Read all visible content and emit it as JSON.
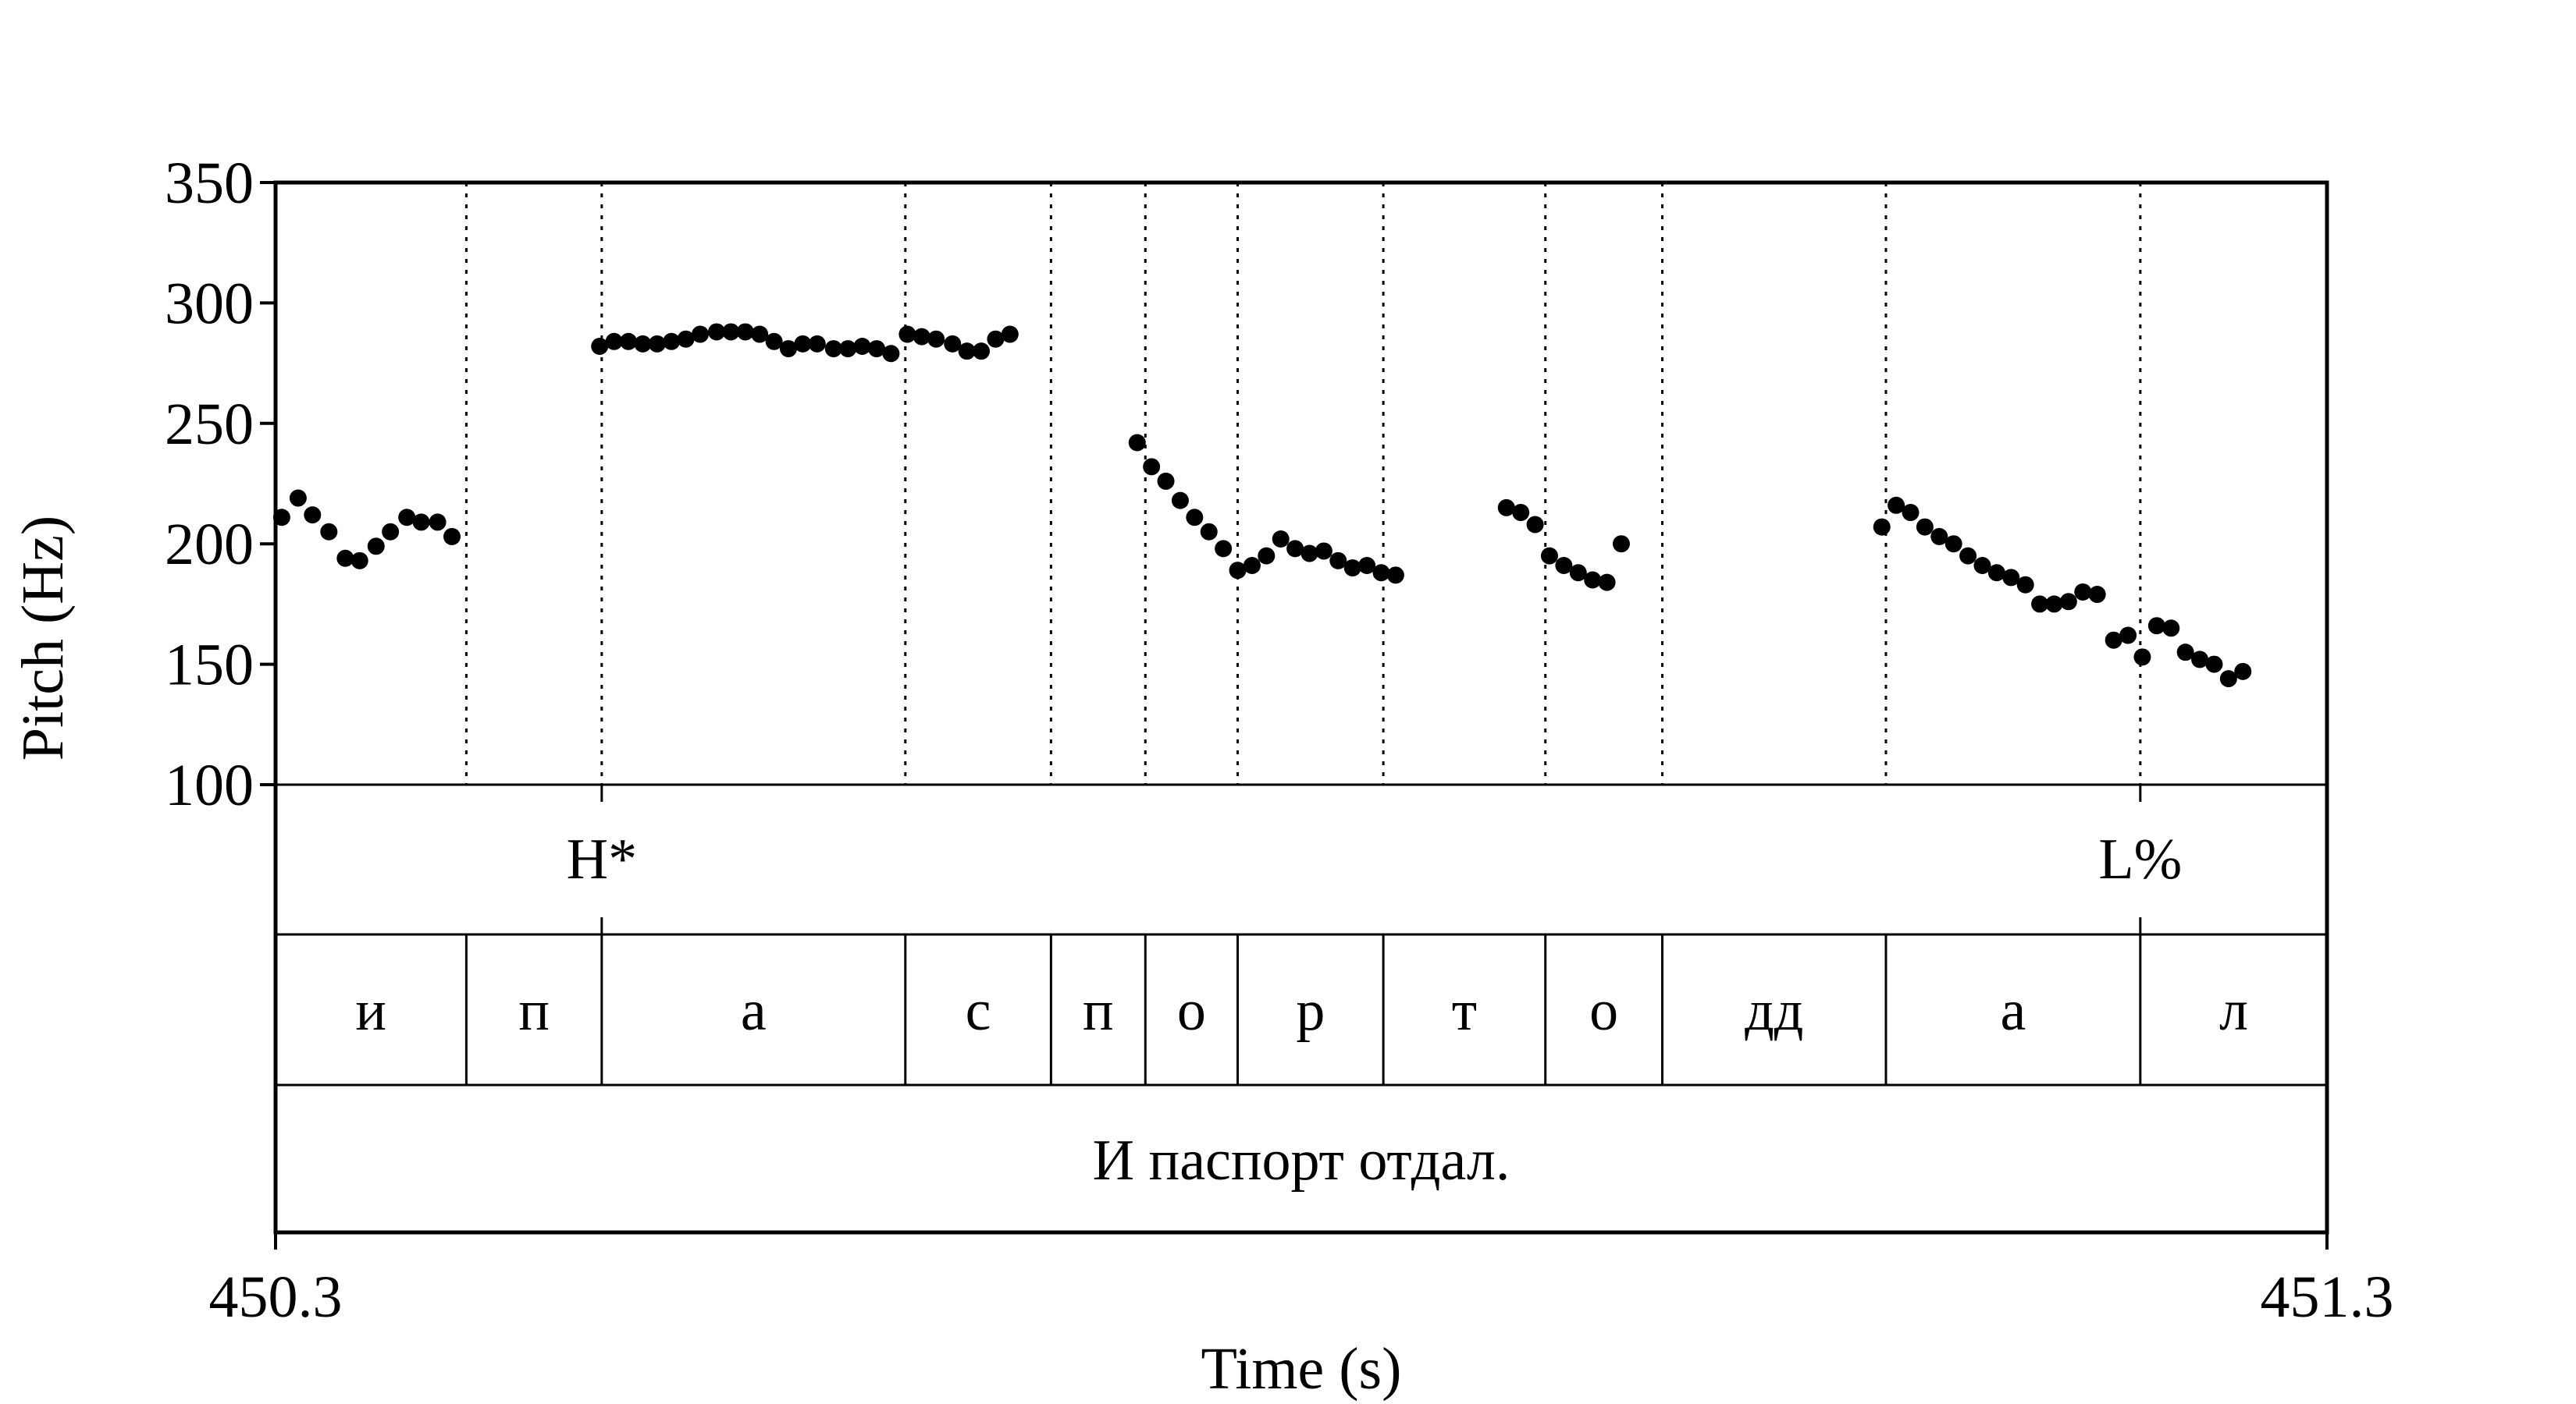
{
  "chart_data": {
    "type": "scatter",
    "title": "",
    "xlabel": "Time (s)",
    "ylabel": "Pitch (Hz)",
    "xlim": [
      450.3,
      451.3
    ],
    "ylim": [
      100,
      350
    ],
    "x_tick_labels": [
      "450.3",
      "451.3"
    ],
    "y_ticks": [
      100,
      150,
      200,
      250,
      300,
      350
    ],
    "y_tick_labels": [
      "100",
      "150",
      "200",
      "250",
      "300",
      "350"
    ],
    "grid": false,
    "series": [
      {
        "points": [
          [
            450.303,
            211
          ],
          [
            450.311,
            219
          ],
          [
            450.318,
            212
          ],
          [
            450.326,
            205
          ],
          [
            450.334,
            194
          ],
          [
            450.341,
            193
          ],
          [
            450.349,
            199
          ],
          [
            450.356,
            205
          ],
          [
            450.364,
            211
          ],
          [
            450.371,
            209
          ],
          [
            450.379,
            209
          ],
          [
            450.386,
            203
          ],
          [
            450.458,
            282
          ],
          [
            450.465,
            284
          ],
          [
            450.472,
            284
          ],
          [
            450.479,
            283
          ],
          [
            450.486,
            283
          ],
          [
            450.493,
            284
          ],
          [
            450.5,
            285
          ],
          [
            450.507,
            287
          ],
          [
            450.515,
            288
          ],
          [
            450.522,
            288
          ],
          [
            450.529,
            288
          ],
          [
            450.536,
            287
          ],
          [
            450.543,
            284
          ],
          [
            450.55,
            281
          ],
          [
            450.557,
            283
          ],
          [
            450.564,
            283
          ],
          [
            450.572,
            281
          ],
          [
            450.579,
            281
          ],
          [
            450.586,
            282
          ],
          [
            450.593,
            281
          ],
          [
            450.6,
            279
          ],
          [
            450.608,
            287
          ],
          [
            450.615,
            286
          ],
          [
            450.622,
            285
          ],
          [
            450.63,
            283
          ],
          [
            450.637,
            280
          ],
          [
            450.644,
            280
          ],
          [
            450.651,
            285
          ],
          [
            450.658,
            287
          ],
          [
            450.72,
            242
          ],
          [
            450.727,
            232
          ],
          [
            450.734,
            226
          ],
          [
            450.741,
            218
          ],
          [
            450.748,
            211
          ],
          [
            450.755,
            205
          ],
          [
            450.762,
            198
          ],
          [
            450.769,
            189
          ],
          [
            450.776,
            191
          ],
          [
            450.783,
            195
          ],
          [
            450.79,
            202
          ],
          [
            450.797,
            198
          ],
          [
            450.804,
            196
          ],
          [
            450.811,
            197
          ],
          [
            450.818,
            193
          ],
          [
            450.825,
            190
          ],
          [
            450.832,
            191
          ],
          [
            450.839,
            188
          ],
          [
            450.846,
            187
          ],
          [
            450.9,
            215
          ],
          [
            450.907,
            213
          ],
          [
            450.914,
            208
          ],
          [
            450.921,
            195
          ],
          [
            450.928,
            191
          ],
          [
            450.935,
            188
          ],
          [
            450.942,
            185
          ],
          [
            450.949,
            184
          ],
          [
            450.956,
            200
          ],
          [
            451.083,
            207
          ],
          [
            451.09,
            216
          ],
          [
            451.097,
            213
          ],
          [
            451.104,
            207
          ],
          [
            451.111,
            203
          ],
          [
            451.118,
            200
          ],
          [
            451.125,
            195
          ],
          [
            451.132,
            191
          ],
          [
            451.139,
            188
          ],
          [
            451.146,
            186
          ],
          [
            451.153,
            183
          ],
          [
            451.16,
            175
          ],
          [
            451.167,
            175
          ],
          [
            451.174,
            176
          ],
          [
            451.181,
            180
          ],
          [
            451.188,
            179
          ],
          [
            451.196,
            160
          ],
          [
            451.203,
            162
          ],
          [
            451.21,
            153
          ],
          [
            451.217,
            166
          ],
          [
            451.224,
            165
          ],
          [
            451.231,
            155
          ],
          [
            451.238,
            152
          ],
          [
            451.245,
            150
          ],
          [
            451.252,
            144
          ],
          [
            451.259,
            147
          ]
        ]
      }
    ],
    "tiers": [
      {
        "name": "tones",
        "points": [
          {
            "time": 450.459,
            "label": "H*"
          },
          {
            "time": 451.209,
            "label": "L%"
          }
        ]
      },
      {
        "name": "segments",
        "intervals": [
          {
            "start": 450.3,
            "end": 450.393,
            "label": "и"
          },
          {
            "start": 450.393,
            "end": 450.459,
            "label": "п"
          },
          {
            "start": 450.459,
            "end": 450.607,
            "label": "а"
          },
          {
            "start": 450.607,
            "end": 450.678,
            "label": "с"
          },
          {
            "start": 450.678,
            "end": 450.724,
            "label": "п"
          },
          {
            "start": 450.724,
            "end": 450.769,
            "label": "о"
          },
          {
            "start": 450.769,
            "end": 450.84,
            "label": "р"
          },
          {
            "start": 450.84,
            "end": 450.919,
            "label": "т"
          },
          {
            "start": 450.919,
            "end": 450.976,
            "label": "о"
          },
          {
            "start": 450.976,
            "end": 451.085,
            "label": "дд"
          },
          {
            "start": 451.085,
            "end": 451.209,
            "label": "а"
          },
          {
            "start": 451.209,
            "end": 451.3,
            "label": "л"
          }
        ]
      },
      {
        "name": "words",
        "intervals": [
          {
            "start": 450.3,
            "end": 451.3,
            "label": "И паспорт отдал."
          }
        ]
      }
    ]
  }
}
